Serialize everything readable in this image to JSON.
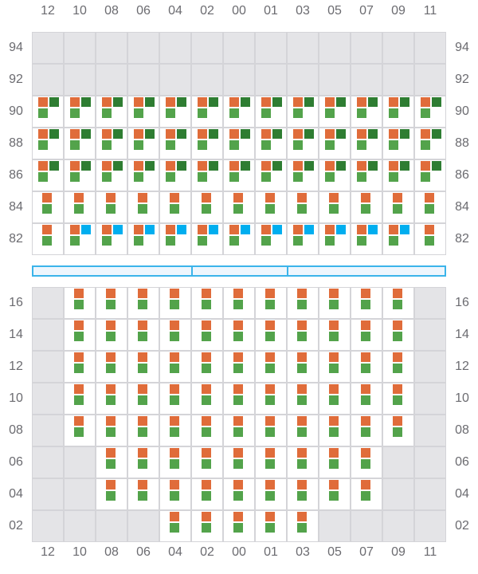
{
  "columns": [
    "12",
    "10",
    "08",
    "06",
    "04",
    "02",
    "00",
    "01",
    "03",
    "05",
    "07",
    "09",
    "11"
  ],
  "colors": {
    "orange": "#E06C3A",
    "dark_green": "#2E7D32",
    "green": "#53A34B",
    "blue": "#00AEEF",
    "empty": "#E4E4E7",
    "border": "#D4D4D8",
    "bar": "#3BB4EA"
  },
  "legend_codes": {
    "x": "empty",
    "c": "orange+green",
    "d": "orange+dark_green+green",
    "b": "orange+blue+green"
  },
  "top_section": {
    "rows": [
      {
        "label": "94",
        "cells": "xxxxxxxxxxxxx"
      },
      {
        "label": "92",
        "cells": "xxxxxxxxxxxxx"
      },
      {
        "label": "90",
        "cells": "ddddddddddddd"
      },
      {
        "label": "88",
        "cells": "ddddddddddddd"
      },
      {
        "label": "86",
        "cells": "ddddddddddddd"
      },
      {
        "label": "84",
        "cells": "ccccccccccccc"
      },
      {
        "label": "82",
        "cells": "cbbbbbbbbbbbc"
      }
    ]
  },
  "bottom_section": {
    "rows": [
      {
        "label": "16",
        "cells": "xcccccccccccx"
      },
      {
        "label": "14",
        "cells": "xcccccccccccx"
      },
      {
        "label": "12",
        "cells": "xcccccccccccx"
      },
      {
        "label": "10",
        "cells": "xcccccccccccx"
      },
      {
        "label": "08",
        "cells": "xcccccccccccx"
      },
      {
        "label": "06",
        "cells": "xxcccccccccxx"
      },
      {
        "label": "04",
        "cells": "xxcccccccccxx"
      },
      {
        "label": "02",
        "cells": "xxxxcccccxxxx"
      }
    ]
  }
}
